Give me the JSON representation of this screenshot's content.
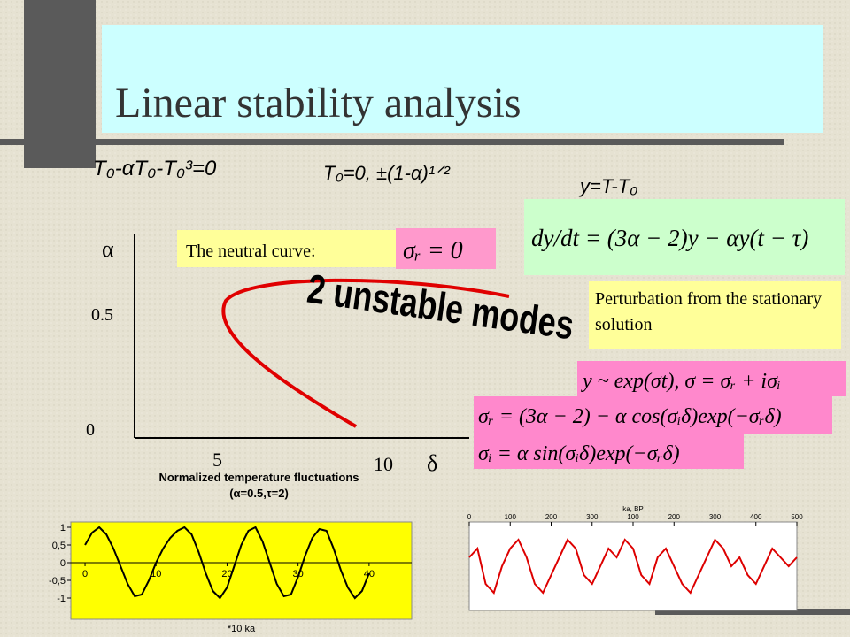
{
  "title": "Linear stability analysis",
  "equations": {
    "steady": "T₀-αT₀-T₀³=0",
    "roots": "T₀=0, ±(1-α)¹ᐟ²",
    "perturbation_def": "y=T-T₀",
    "delay_eq": "dy/dt = (3α − 2)y − αy(t − τ)",
    "ansatz": "y ~ exp(σt), σ = σᵣ + iσᵢ",
    "real_part": "σᵣ = (3α − 2) − α cos(σᵢδ)exp(−σᵣδ)",
    "imag_part": "σᵢ = α sin(σᵢδ)exp(−σᵣδ)"
  },
  "diagram": {
    "y_label": "α",
    "x_label": "δ",
    "y_tick_labels": [
      "0.5",
      "0"
    ],
    "x_tick_labels": [
      "5",
      "10"
    ],
    "neutral_label": "The neutral curve:",
    "neutral_eq": "σᵣ = 0",
    "annotation": "2 unstable modes"
  },
  "perturbation_note": "Perturbation from the stationary solution",
  "chart_data": [
    {
      "type": "line",
      "title": "Normalized temperature fluctuations",
      "subtitle": "(α=0.5,τ=2)",
      "x_label": "*10 ka",
      "color": "#000000",
      "background": "#ffff00",
      "x": [
        0,
        1,
        2,
        3,
        4,
        5,
        6,
        7,
        8,
        9,
        10,
        11,
        12,
        13,
        14,
        15,
        16,
        17,
        18,
        19,
        20,
        21,
        22,
        23,
        24,
        25,
        26,
        27,
        28,
        29,
        30,
        31,
        32,
        33,
        34,
        35,
        36,
        37,
        38,
        39,
        40
      ],
      "values": [
        0.5,
        0.85,
        1.0,
        0.8,
        0.4,
        -0.1,
        -0.6,
        -0.95,
        -0.9,
        -0.5,
        0,
        0.4,
        0.7,
        0.9,
        1.0,
        0.8,
        0.3,
        -0.3,
        -0.8,
        -1.0,
        -0.7,
        -0.1,
        0.5,
        0.9,
        1.0,
        0.6,
        0,
        -0.6,
        -0.95,
        -0.9,
        -0.4,
        0.2,
        0.7,
        0.95,
        0.9,
        0.4,
        -0.2,
        -0.7,
        -1.0,
        -0.8,
        -0.3
      ],
      "xlim": [
        -2,
        46
      ],
      "ylim": [
        -1.6,
        1.15
      ],
      "xticks": [
        0,
        10,
        20,
        30,
        40
      ],
      "yticks": [
        1,
        {
          "value": 0.5,
          "label": "0,5"
        },
        0,
        {
          "value": -0.5,
          "label": "-0,5"
        },
        -1
      ]
    },
    {
      "type": "line",
      "x_label": "ka, BP",
      "color": "#dd0000",
      "background": "#ffffff",
      "x": [
        0,
        20,
        40,
        60,
        80,
        100,
        120,
        140,
        160,
        180,
        200,
        220,
        240,
        260,
        280,
        300,
        320,
        340,
        360,
        380,
        400,
        420,
        440,
        460,
        480,
        500,
        520,
        540,
        560,
        580,
        600,
        620,
        640,
        660,
        680,
        700,
        720,
        740,
        760,
        780,
        800
      ],
      "values": [
        6,
        7,
        3,
        2,
        5,
        7,
        8,
        6,
        3,
        2,
        4,
        6,
        8,
        7,
        4,
        3,
        5,
        7,
        6,
        8,
        7,
        4,
        3,
        6,
        7,
        5,
        3,
        2,
        4,
        6,
        8,
        7,
        5,
        6,
        4,
        3,
        5,
        7,
        6,
        5,
        6
      ],
      "xlim": [
        0,
        800
      ],
      "ylim": [
        0,
        10
      ],
      "xticks": [
        0,
        100,
        200,
        300,
        {
          "value": 400,
          "label": "100"
        },
        {
          "value": 500,
          "label": "200"
        },
        {
          "value": 600,
          "label": "300"
        },
        {
          "value": 700,
          "label": "400"
        },
        {
          "value": 800,
          "label": "500"
        }
      ]
    }
  ]
}
